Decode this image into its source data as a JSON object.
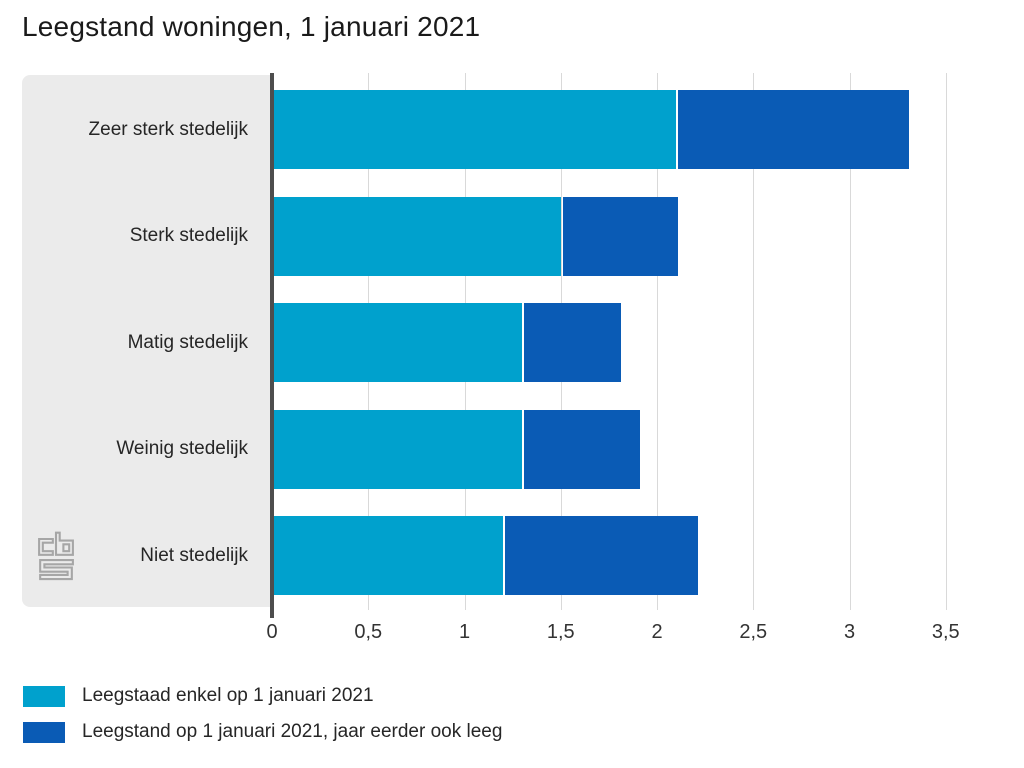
{
  "title": "Leegstand woningen, 1 januari 2021",
  "chart_data": {
    "type": "bar",
    "orientation": "horizontal",
    "stacked": true,
    "title": "Leegstand woningen, 1 januari 2021",
    "categories": [
      "Zeer sterk stedelijk",
      "Sterk stedelijk",
      "Matig stedelijk",
      "Weinig stedelijk",
      "Niet stedelijk"
    ],
    "series": [
      {
        "name": "Leegstaad enkel op 1 januari 2021",
        "color": "#00a1cd",
        "values": [
          2.1,
          1.5,
          1.3,
          1.3,
          1.2
        ]
      },
      {
        "name": "Leegstand op 1 januari 2021, jaar eerder ook leeg",
        "color": "#0a5bb5",
        "values": [
          1.2,
          0.6,
          0.5,
          0.6,
          1.0
        ]
      }
    ],
    "totals": [
      3.3,
      2.1,
      1.8,
      1.9,
      2.2
    ],
    "xlabel": "",
    "ylabel": "",
    "x_ticks": [
      "0",
      "0,5",
      "1",
      "1,5",
      "2",
      "2,5",
      "3",
      "3,5"
    ],
    "x_tick_values": [
      0,
      0.5,
      1,
      1.5,
      2,
      2.5,
      3,
      3.5
    ],
    "xlim": [
      0,
      3.5
    ],
    "grid": true,
    "legend_position": "bottom-left"
  },
  "branding": {
    "icon": "cbs-logo",
    "logo_color": "#a6a6a6"
  },
  "colors": {
    "background": "#ffffff",
    "category_panel": "#ebebeb",
    "axis_line": "#4d4d4d",
    "gridline": "#d9d9d9",
    "title_text": "#1a1a1a",
    "label_text": "#262626"
  }
}
